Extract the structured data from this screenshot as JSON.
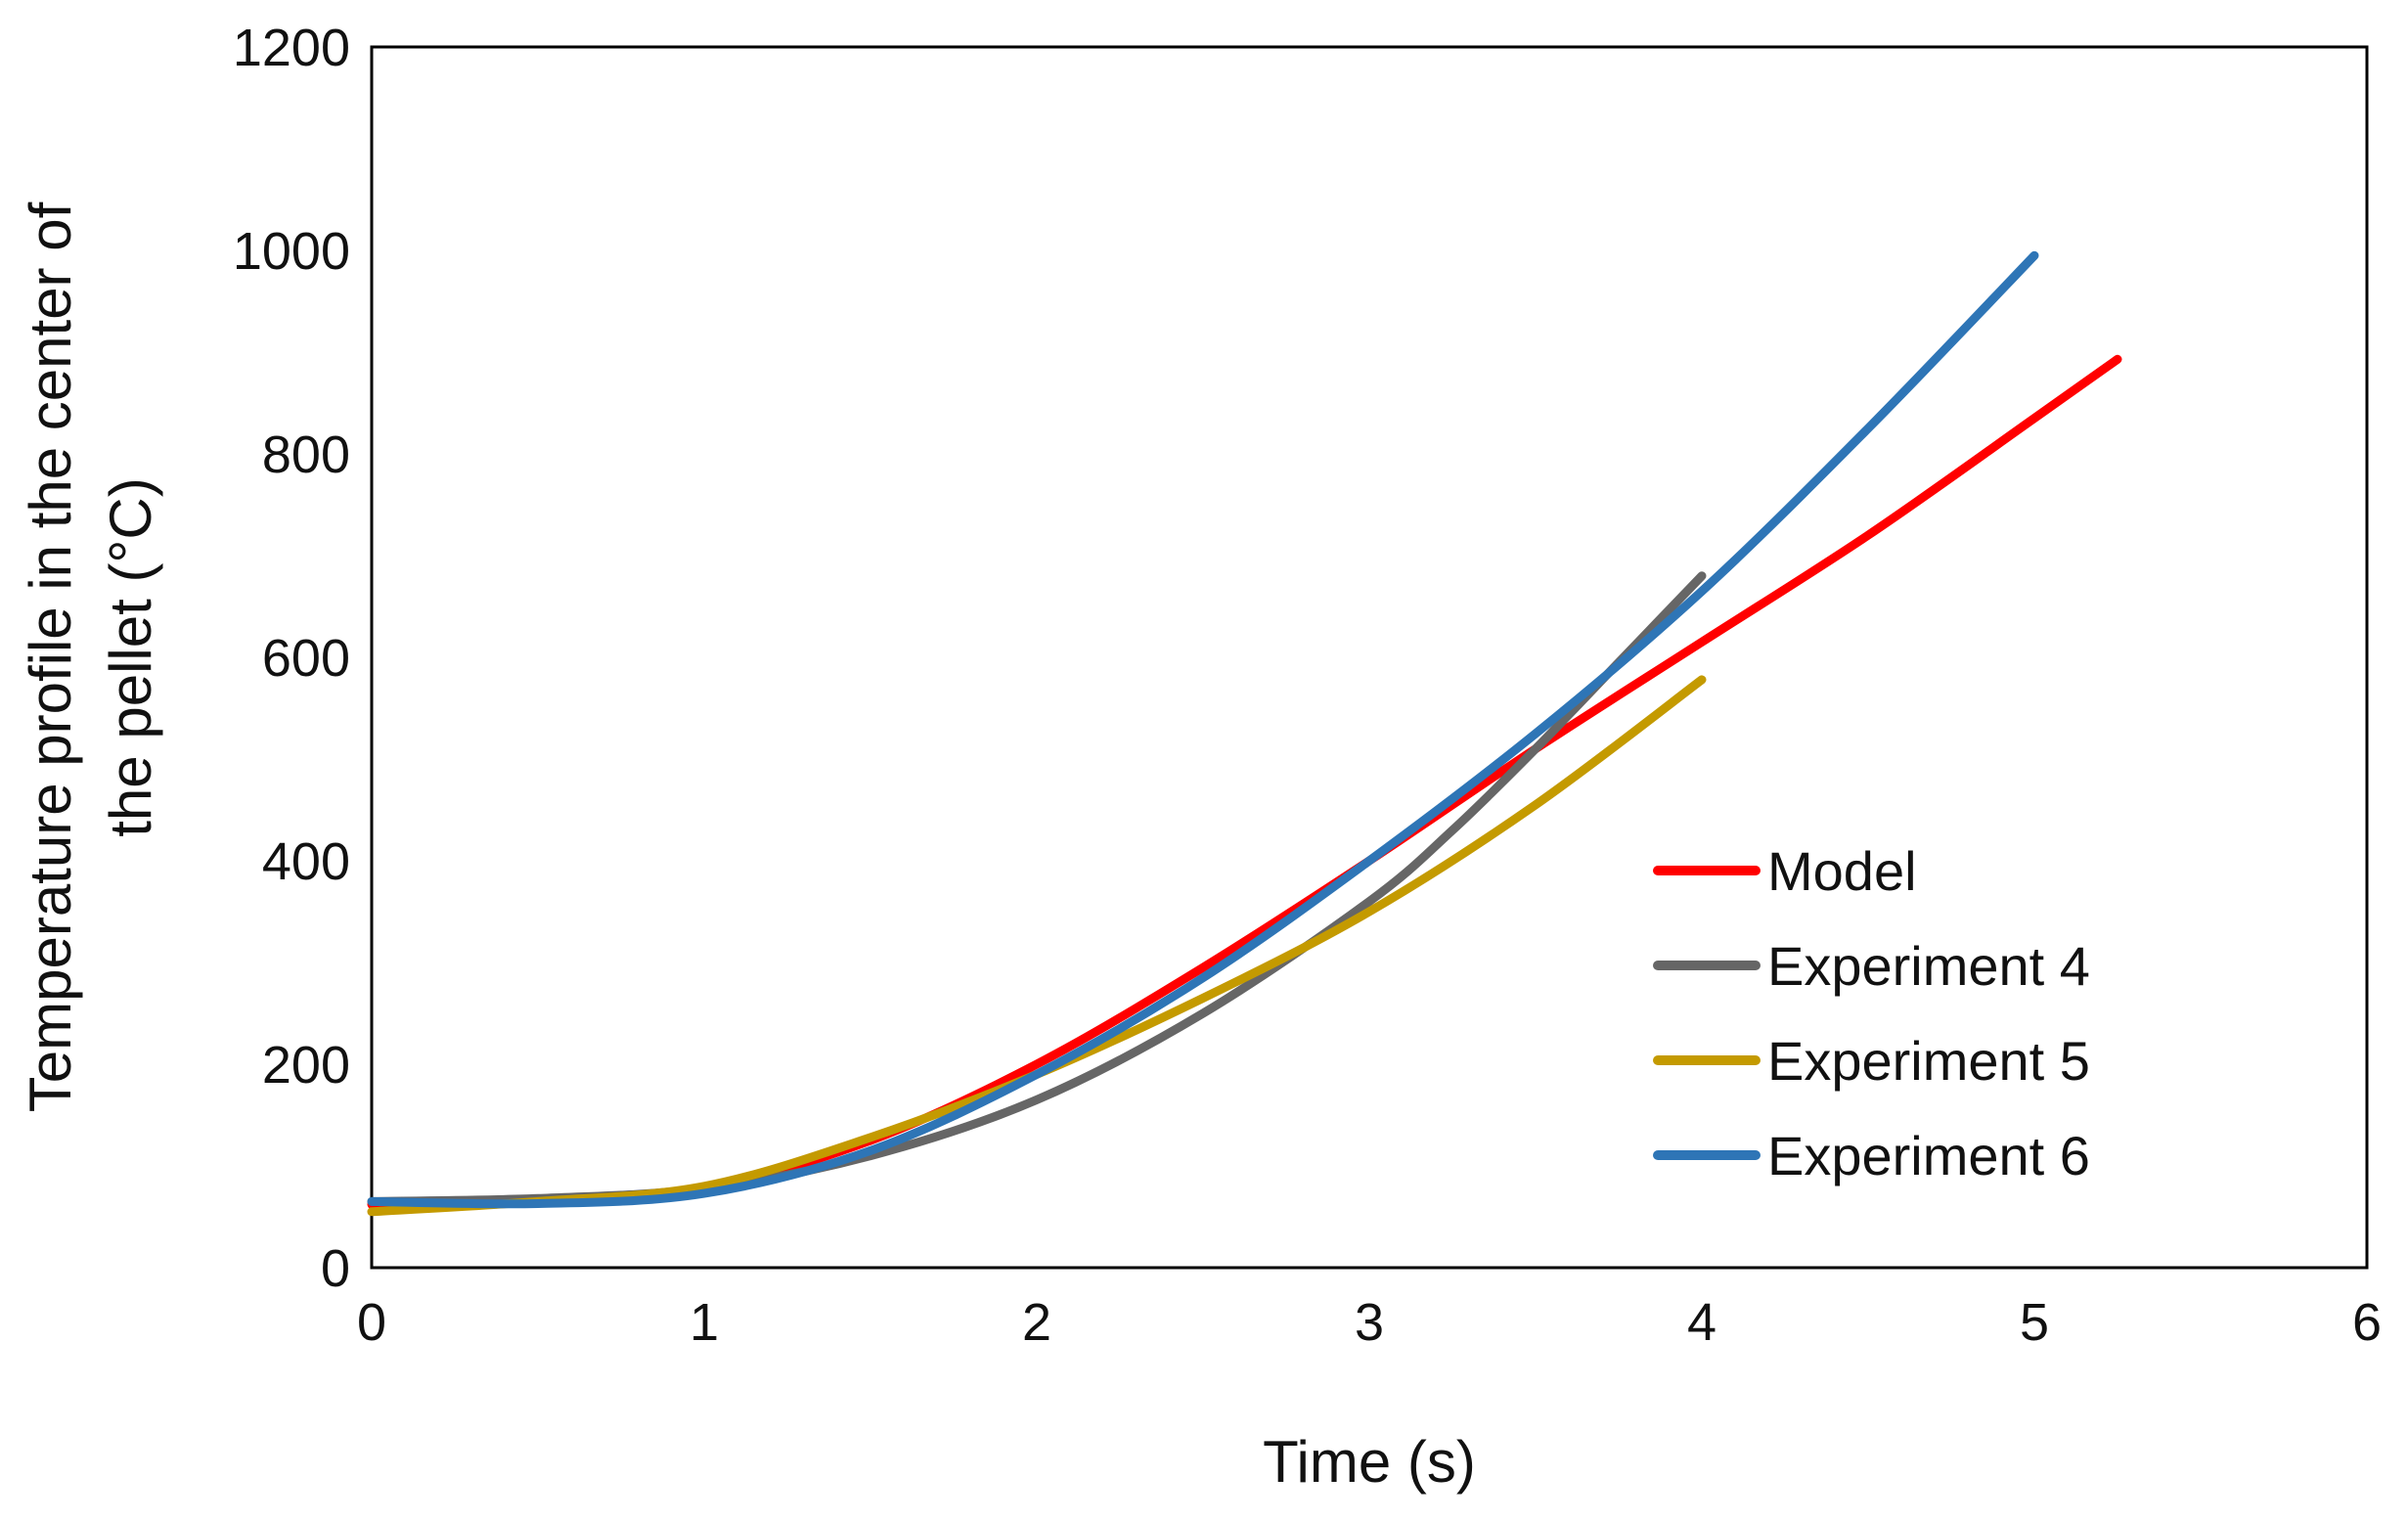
{
  "chart_data": {
    "type": "line",
    "title": "",
    "xlabel": "Time (s)",
    "ylabel_lines": [
      "Temperature profile in the center of",
      "the pellet (°C)"
    ],
    "xlim": [
      0,
      6
    ],
    "ylim": [
      0,
      1200
    ],
    "xticks": [
      0,
      1,
      2,
      3,
      4,
      5,
      6
    ],
    "yticks": [
      0,
      200,
      400,
      600,
      800,
      1000,
      1200
    ],
    "grid": false,
    "legend_position": "right",
    "series": [
      {
        "name": "Model",
        "color": "#ff0000",
        "x": [
          0,
          0.5,
          1,
          1.5,
          2,
          2.5,
          3,
          3.5,
          4,
          4.5,
          5,
          5.25
        ],
        "y": [
          62,
          64,
          78,
          125,
          200,
          295,
          400,
          510,
          615,
          720,
          835,
          893
        ]
      },
      {
        "name": "Experiment 4",
        "color": "#666666",
        "x": [
          0,
          0.5,
          1,
          1.5,
          2,
          2.5,
          3,
          3.25,
          3.5,
          3.75,
          4
        ],
        "y": [
          65,
          68,
          78,
          110,
          165,
          250,
          360,
          430,
          510,
          595,
          680
        ]
      },
      {
        "name": "Experiment 5",
        "color": "#c49a00",
        "x": [
          0,
          0.5,
          1,
          1.5,
          2,
          2.5,
          3,
          3.5,
          4
        ],
        "y": [
          55,
          65,
          80,
          128,
          190,
          265,
          350,
          455,
          578
        ]
      },
      {
        "name": "Experiment 6",
        "color": "#2e75b6",
        "x": [
          0,
          0.5,
          1,
          1.5,
          2,
          2.5,
          3,
          3.5,
          4,
          4.5,
          5
        ],
        "y": [
          65,
          63,
          73,
          115,
          190,
          285,
          400,
          525,
          665,
          825,
          995
        ]
      }
    ]
  }
}
